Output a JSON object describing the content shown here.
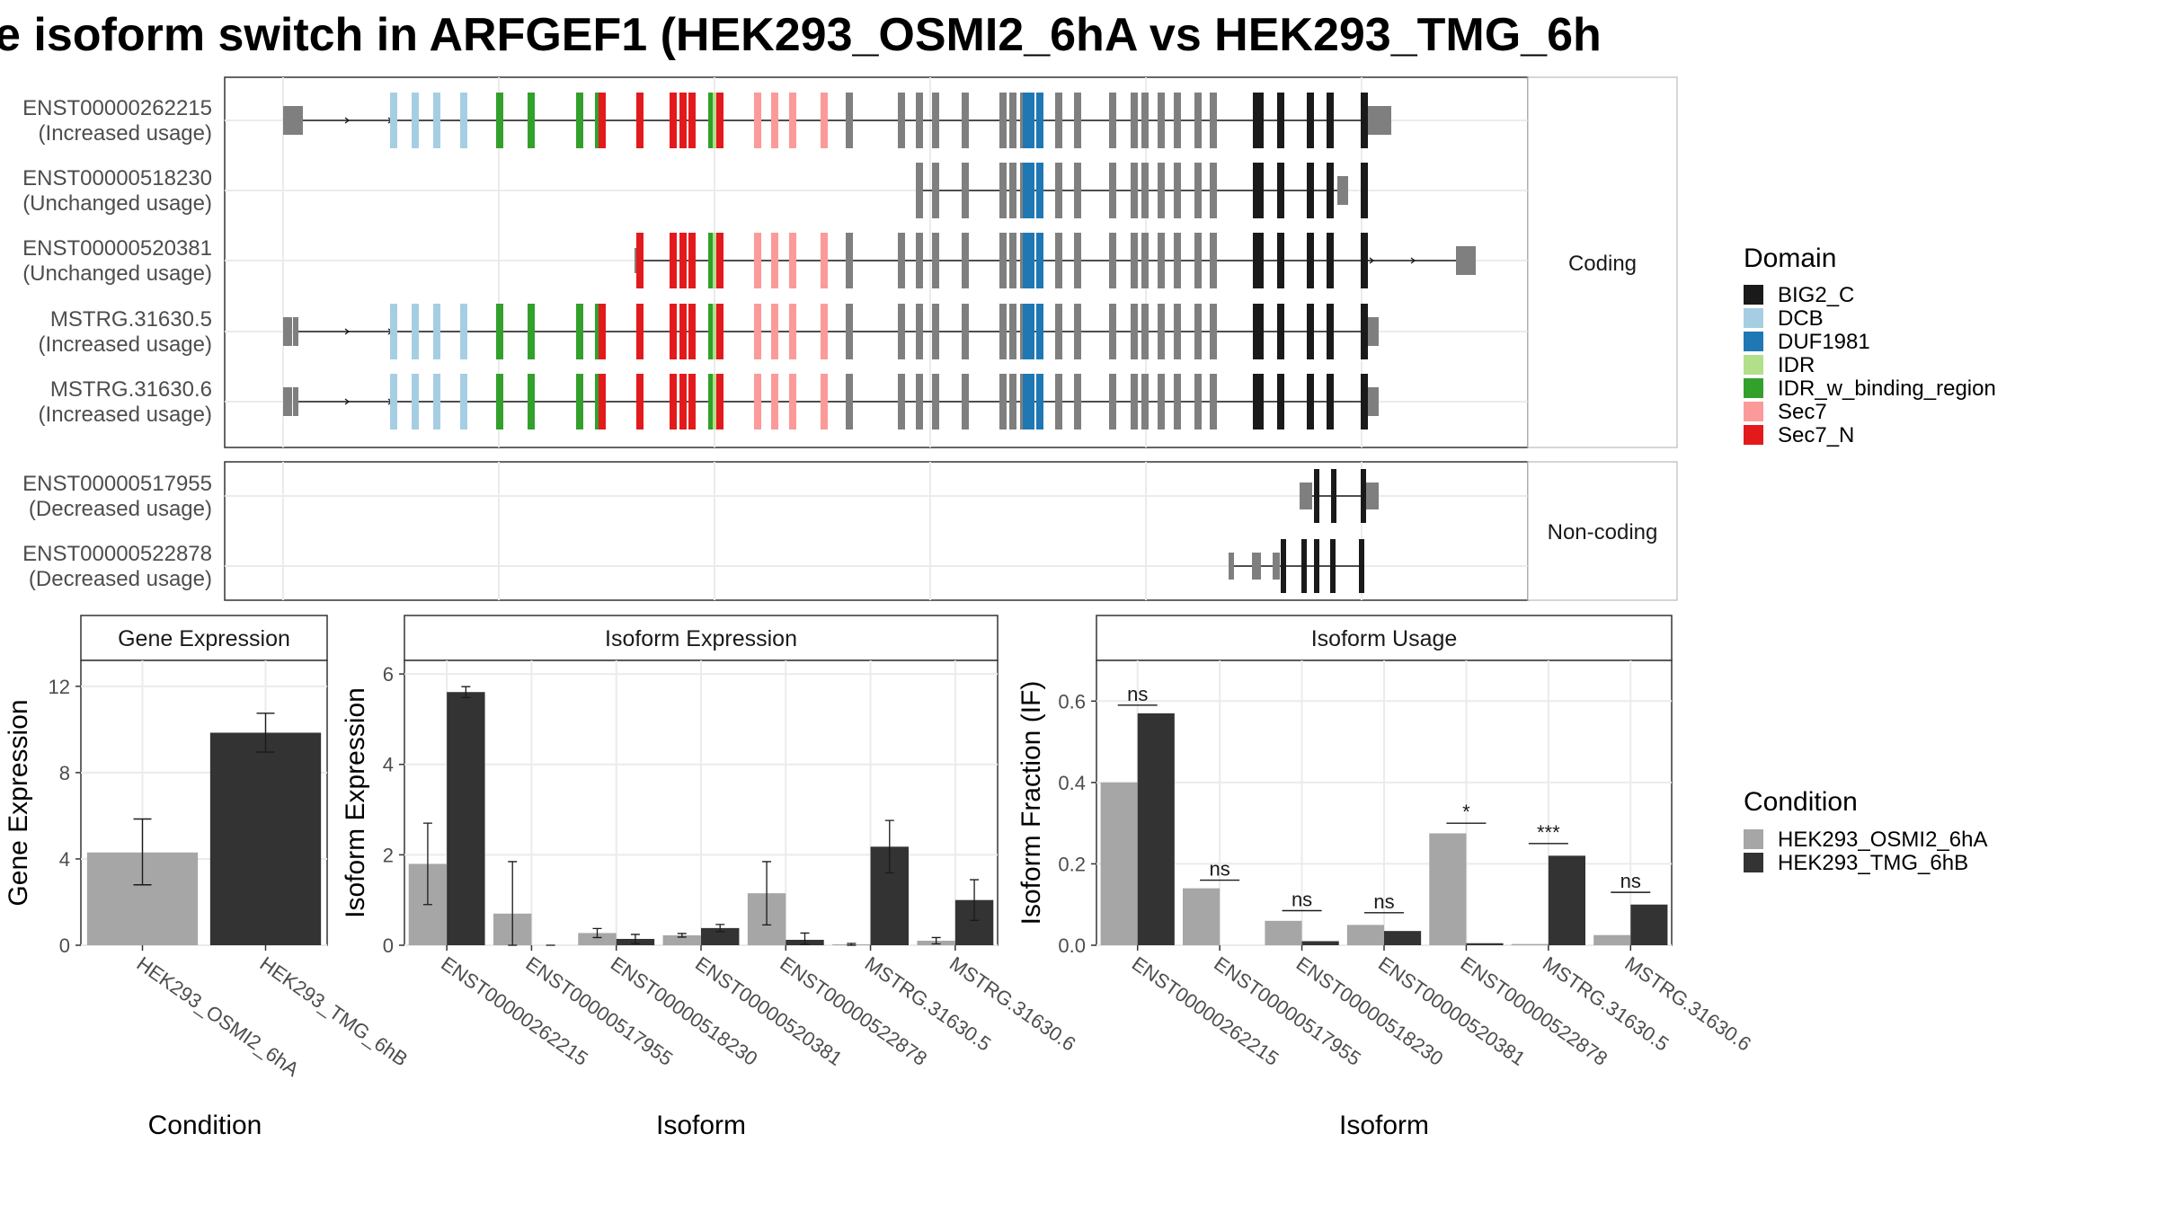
{
  "title": "e isoform switch in ARFGEF1 (HEK293_OSMI2_6hA vs HEK293_TMG_6h",
  "structure": {
    "coding_strip": "Coding",
    "noncoding_strip": "Non-coding",
    "coding_isoforms": [
      {
        "id": "ENST00000262215",
        "usage": "(Increased usage)"
      },
      {
        "id": "ENST00000518230",
        "usage": "(Unchanged usage)"
      },
      {
        "id": "ENST00000520381",
        "usage": "(Unchanged usage)"
      },
      {
        "id": "MSTRG.31630.5",
        "usage": "(Increased usage)"
      },
      {
        "id": "MSTRG.31630.6",
        "usage": "(Increased usage)"
      }
    ],
    "noncoding_isoforms": [
      {
        "id": "ENST00000517955",
        "usage": "(Decreased usage)"
      },
      {
        "id": "ENST00000522878",
        "usage": "(Decreased usage)"
      }
    ]
  },
  "legend_domain": {
    "title": "Domain",
    "items": [
      {
        "label": "BIG2_C",
        "color": "#1a1a1a"
      },
      {
        "label": "DCB",
        "color": "#a6cee3"
      },
      {
        "label": "DUF1981",
        "color": "#1f78b4"
      },
      {
        "label": "IDR",
        "color": "#b2df8a"
      },
      {
        "label": "IDR_w_binding_region",
        "color": "#33a02c"
      },
      {
        "label": "Sec7",
        "color": "#fb9a99"
      },
      {
        "label": "Sec7_N",
        "color": "#e31a1c"
      }
    ]
  },
  "legend_condition": {
    "title": "Condition",
    "items": [
      {
        "label": "HEK293_OSMI2_6hA",
        "color": "#a6a6a6"
      },
      {
        "label": "HEK293_TMG_6hB",
        "color": "#333333"
      }
    ]
  },
  "chart_data": [
    {
      "type": "bar",
      "title": "Gene Expression",
      "xlabel": "Condition",
      "ylabel": "Gene Expression",
      "ylim": [
        0,
        13.2
      ],
      "yticks": [
        "0",
        "4",
        "8",
        "12"
      ],
      "categories": [
        "HEK293_OSMI2_6hA",
        "HEK293_TMG_6hB"
      ],
      "values": [
        4.3,
        9.85
      ],
      "errors": [
        [
          2.8,
          5.85
        ],
        [
          8.95,
          10.75
        ]
      ]
    },
    {
      "type": "bar",
      "title": "Isoform Expression",
      "xlabel": "Isoform",
      "ylabel": "Isoform Expression",
      "ylim": [
        0,
        6.3
      ],
      "yticks": [
        "0",
        "2",
        "4",
        "6"
      ],
      "categories": [
        "ENST00000262215",
        "ENST00000517955",
        "ENST00000518230",
        "ENST00000520381",
        "ENST00000522878",
        "MSTRG.31630.5",
        "MSTRG.31630.6"
      ],
      "series": [
        {
          "name": "HEK293_OSMI2_6hA",
          "values": [
            1.8,
            0.7,
            0.27,
            0.22,
            1.15,
            0.02,
            0.1
          ],
          "errors": [
            [
              0.9,
              2.7
            ],
            [
              0,
              1.85
            ],
            [
              0.17,
              0.37
            ],
            [
              0.18,
              0.26
            ],
            [
              0.45,
              1.85
            ],
            [
              0,
              0.04
            ],
            [
              0.03,
              0.17
            ]
          ]
        },
        {
          "name": "HEK293_TMG_6hB",
          "values": [
            5.6,
            0.0,
            0.14,
            0.38,
            0.12,
            2.18,
            1.0
          ],
          "errors": [
            [
              5.48,
              5.72
            ],
            [
              0,
              0
            ],
            [
              0.04,
              0.24
            ],
            [
              0.3,
              0.46
            ],
            [
              0.02,
              0.27
            ],
            [
              1.6,
              2.76
            ],
            [
              0.55,
              1.45
            ]
          ]
        }
      ]
    },
    {
      "type": "bar",
      "title": "Isoform Usage",
      "xlabel": "Isoform",
      "ylabel": "Isoform Fraction (IF)",
      "ylim": [
        0,
        0.7
      ],
      "yticks": [
        "0.0",
        "0.2",
        "0.4",
        "0.6"
      ],
      "categories": [
        "ENST00000262215",
        "ENST00000517955",
        "ENST00000518230",
        "ENST00000520381",
        "ENST00000522878",
        "MSTRG.31630.5",
        "MSTRG.31630.6"
      ],
      "series": [
        {
          "name": "HEK293_OSMI2_6hA",
          "values": [
            0.4,
            0.14,
            0.06,
            0.05,
            0.275,
            0.003,
            0.025
          ]
        },
        {
          "name": "HEK293_TMG_6hB",
          "values": [
            0.57,
            0.0,
            0.01,
            0.035,
            0.005,
            0.22,
            0.1
          ]
        }
      ],
      "significance": [
        {
          "label": "ns",
          "y": 0.59
        },
        {
          "label": "ns",
          "y": 0.16
        },
        {
          "label": "ns",
          "y": 0.085
        },
        {
          "label": "ns",
          "y": 0.08
        },
        {
          "label": "*",
          "y": 0.3
        },
        {
          "label": "***",
          "y": 0.25
        },
        {
          "label": "ns",
          "y": 0.13
        }
      ]
    }
  ]
}
